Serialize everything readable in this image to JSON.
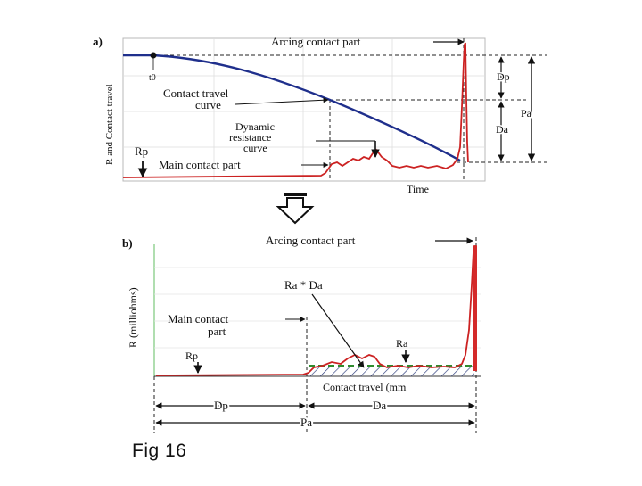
{
  "panel_a": {
    "label": "a)",
    "ylabel": "R and Contact travel",
    "xlabel": "Time",
    "arcing": "Arcing contact part",
    "t0": "t0",
    "travel1": "Contact travel",
    "travel2": "curve",
    "dyn1": "Dynamic",
    "dyn2": "resistance",
    "dyn3": "curve",
    "rp": "Rp",
    "main": "Main contact part",
    "dp": "Dp",
    "da": "Da",
    "pa": "Pa"
  },
  "panel_b": {
    "label": "b)",
    "ylabel": "R (milliohms)",
    "arcing": "Arcing contact part",
    "rada": "Ra * Da",
    "main1": "Main contact",
    "main2": "part",
    "rp": "Rp",
    "ra": "Ra",
    "travel": "Contact travel (mm",
    "dp": "Dp",
    "da": "Da",
    "pa": "Pa"
  },
  "caption": "Fig 16",
  "colors": {
    "travel_curve": "#1f2f8c",
    "resistance_curve": "#cc2222",
    "ra_line": "#2e8b2e",
    "axis_green": "#8fcf8f"
  }
}
